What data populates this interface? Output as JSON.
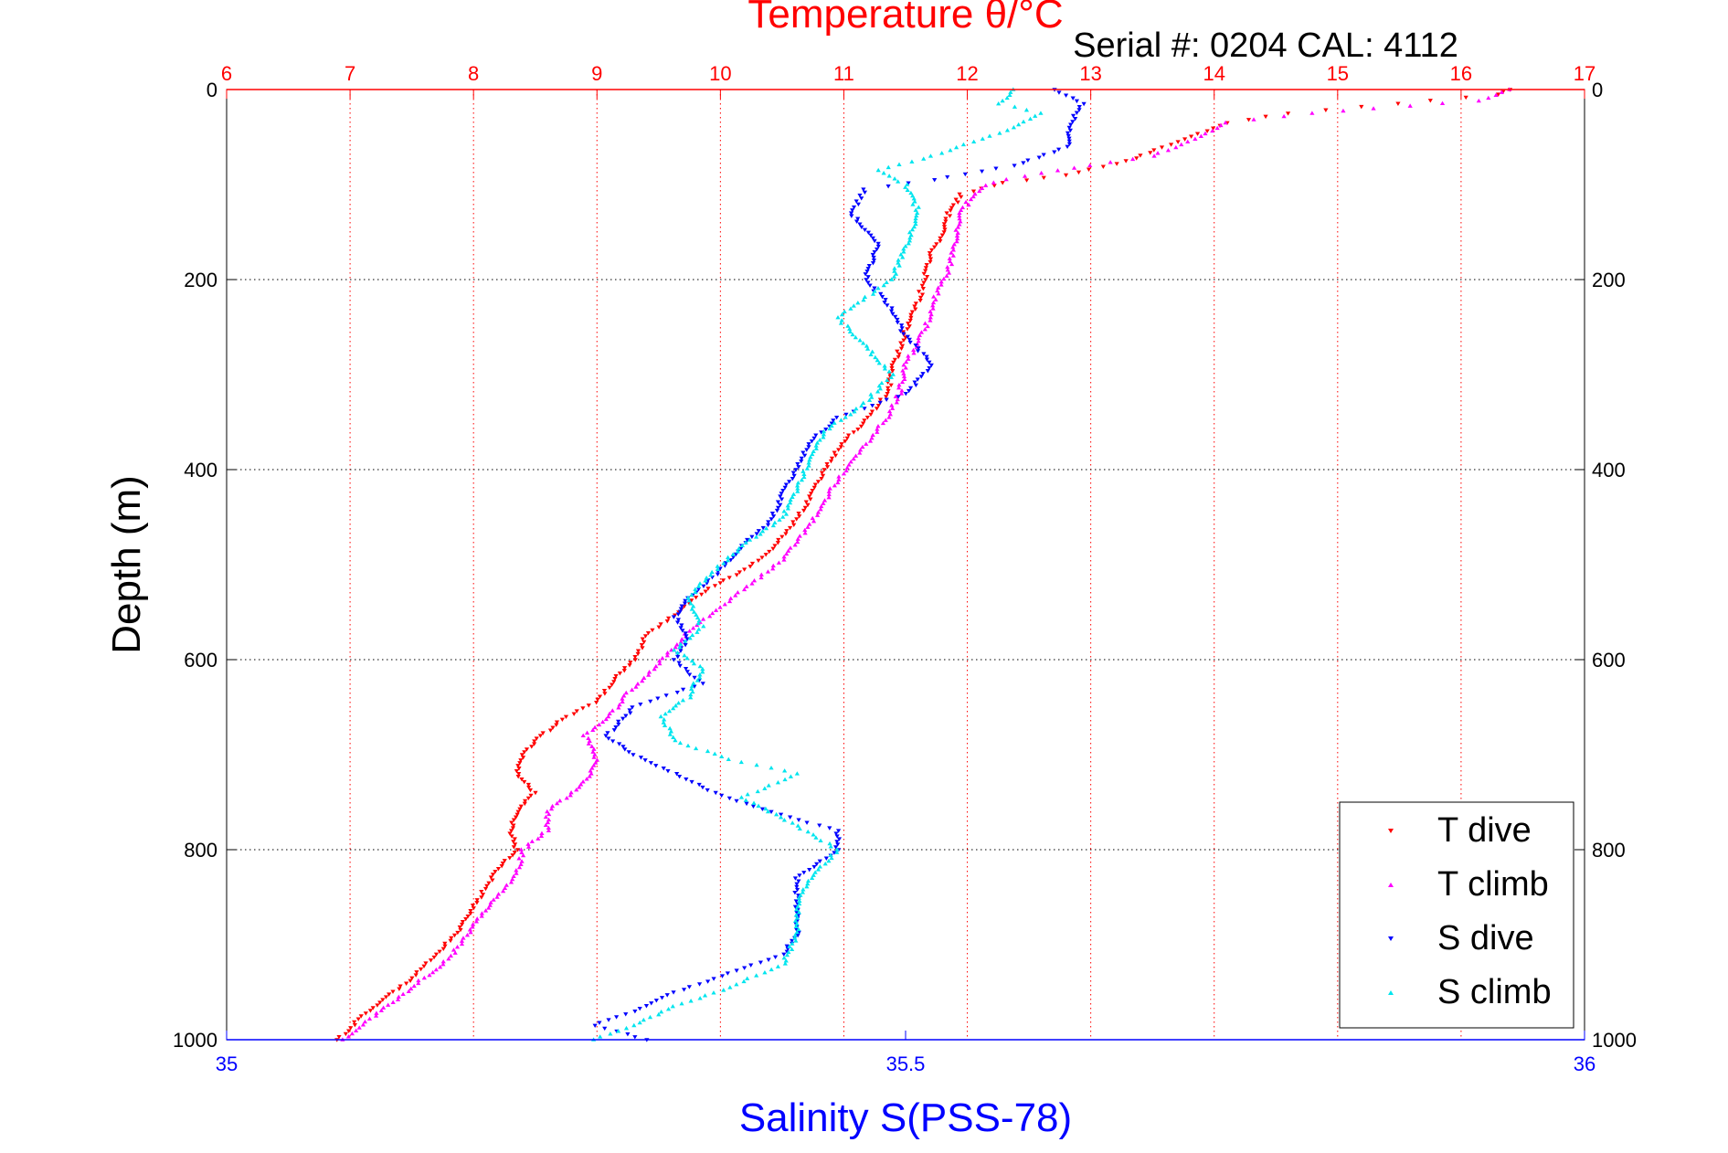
{
  "chart_data": {
    "type": "scatter",
    "title": "Temperature θ/°C",
    "subtitle": "Serial #: 0204  CAL: 4112",
    "ylabel": "Depth (m)",
    "xlabel": "Salinity S(PSS-78)",
    "x_top": {
      "label": "Temperature θ/°C",
      "range": [
        6,
        17
      ],
      "ticks": [
        "6",
        "7",
        "8",
        "9",
        "10",
        "11",
        "12",
        "13",
        "14",
        "15",
        "16",
        "17"
      ],
      "color": "#ff0000"
    },
    "x_bottom": {
      "label": "Salinity S(PSS-78)",
      "range": [
        35,
        36
      ],
      "ticks": [
        "35",
        "35.5",
        "36"
      ],
      "color": "#0000ff"
    },
    "y": {
      "range": [
        0,
        1000
      ],
      "reversed": true,
      "ticks": [
        "0",
        "200",
        "400",
        "600",
        "800",
        "1000"
      ]
    },
    "grid": true,
    "legend_position": "bottom-right",
    "series": [
      {
        "name": "T dive",
        "axis": "temperature",
        "color": "#ff0000",
        "marker": "triangle-down",
        "points": [
          [
            16.4,
            0
          ],
          [
            16.3,
            5
          ],
          [
            15.2,
            18
          ],
          [
            14.6,
            25
          ],
          [
            14.1,
            35
          ],
          [
            13.7,
            55
          ],
          [
            13.3,
            75
          ],
          [
            12.8,
            90
          ],
          [
            12.3,
            98
          ],
          [
            11.95,
            110
          ],
          [
            11.85,
            130
          ],
          [
            11.8,
            150
          ],
          [
            11.7,
            175
          ],
          [
            11.65,
            200
          ],
          [
            11.6,
            225
          ],
          [
            11.5,
            255
          ],
          [
            11.4,
            290
          ],
          [
            11.35,
            320
          ],
          [
            11.2,
            345
          ],
          [
            11.0,
            370
          ],
          [
            10.85,
            400
          ],
          [
            10.75,
            425
          ],
          [
            10.6,
            455
          ],
          [
            10.45,
            480
          ],
          [
            10.2,
            505
          ],
          [
            9.9,
            525
          ],
          [
            9.65,
            550
          ],
          [
            9.4,
            575
          ],
          [
            9.3,
            600
          ],
          [
            9.15,
            620
          ],
          [
            9.0,
            645
          ],
          [
            8.75,
            660
          ],
          [
            8.55,
            680
          ],
          [
            8.4,
            700
          ],
          [
            8.35,
            720
          ],
          [
            8.5,
            740
          ],
          [
            8.35,
            760
          ],
          [
            8.3,
            780
          ],
          [
            8.35,
            800
          ],
          [
            8.2,
            820
          ],
          [
            8.05,
            850
          ],
          [
            7.95,
            870
          ],
          [
            7.85,
            890
          ],
          [
            7.7,
            910
          ],
          [
            7.5,
            935
          ],
          [
            7.3,
            955
          ],
          [
            7.1,
            975
          ],
          [
            6.9,
            1000
          ]
        ]
      },
      {
        "name": "T climb",
        "axis": "temperature",
        "color": "#ff00ff",
        "marker": "triangle-up",
        "points": [
          [
            16.4,
            0
          ],
          [
            16.15,
            12
          ],
          [
            15.3,
            20
          ],
          [
            14.8,
            25
          ],
          [
            14.1,
            35
          ],
          [
            13.8,
            55
          ],
          [
            13.5,
            70
          ],
          [
            13.0,
            80
          ],
          [
            12.6,
            88
          ],
          [
            12.2,
            98
          ],
          [
            12.05,
            110
          ],
          [
            11.95,
            130
          ],
          [
            11.9,
            160
          ],
          [
            11.85,
            190
          ],
          [
            11.75,
            215
          ],
          [
            11.7,
            240
          ],
          [
            11.6,
            265
          ],
          [
            11.5,
            290
          ],
          [
            11.45,
            320
          ],
          [
            11.35,
            345
          ],
          [
            11.2,
            370
          ],
          [
            11.05,
            395
          ],
          [
            10.9,
            420
          ],
          [
            10.8,
            445
          ],
          [
            10.65,
            470
          ],
          [
            10.5,
            495
          ],
          [
            10.25,
            520
          ],
          [
            10.0,
            545
          ],
          [
            9.75,
            570
          ],
          [
            9.6,
            590
          ],
          [
            9.45,
            610
          ],
          [
            9.25,
            635
          ],
          [
            9.1,
            660
          ],
          [
            8.9,
            680
          ],
          [
            9.0,
            700
          ],
          [
            8.95,
            720
          ],
          [
            8.8,
            740
          ],
          [
            8.6,
            760
          ],
          [
            8.6,
            780
          ],
          [
            8.4,
            800
          ],
          [
            8.35,
            825
          ],
          [
            8.2,
            850
          ],
          [
            8.05,
            870
          ],
          [
            7.95,
            890
          ],
          [
            7.8,
            915
          ],
          [
            7.6,
            935
          ],
          [
            7.4,
            955
          ],
          [
            7.2,
            975
          ],
          [
            6.95,
            1000
          ]
        ]
      },
      {
        "name": "S dive",
        "axis": "salinity",
        "color": "#0000ff",
        "marker": "triangle-down",
        "points": [
          [
            35.61,
            0
          ],
          [
            35.63,
            15
          ],
          [
            35.62,
            40
          ],
          [
            35.62,
            60
          ],
          [
            35.58,
            80
          ],
          [
            35.52,
            95
          ],
          [
            35.47,
            105
          ],
          [
            35.46,
            130
          ],
          [
            35.48,
            165
          ],
          [
            35.47,
            200
          ],
          [
            35.49,
            230
          ],
          [
            35.5,
            260
          ],
          [
            35.52,
            290
          ],
          [
            35.5,
            320
          ],
          [
            35.45,
            345
          ],
          [
            35.43,
            370
          ],
          [
            35.42,
            400
          ],
          [
            35.41,
            425
          ],
          [
            35.4,
            455
          ],
          [
            35.38,
            480
          ],
          [
            35.36,
            510
          ],
          [
            35.34,
            535
          ],
          [
            35.33,
            555
          ],
          [
            35.34,
            575
          ],
          [
            35.33,
            600
          ],
          [
            35.35,
            625
          ],
          [
            35.3,
            650
          ],
          [
            35.28,
            680
          ],
          [
            35.3,
            700
          ],
          [
            35.33,
            720
          ],
          [
            35.36,
            740
          ],
          [
            35.4,
            760
          ],
          [
            35.45,
            780
          ],
          [
            35.45,
            800
          ],
          [
            35.42,
            830
          ],
          [
            35.42,
            860
          ],
          [
            35.42,
            890
          ],
          [
            35.41,
            910
          ],
          [
            35.37,
            930
          ],
          [
            35.33,
            950
          ],
          [
            35.3,
            970
          ],
          [
            35.27,
            985
          ],
          [
            35.31,
            1000
          ]
        ]
      },
      {
        "name": "S climb",
        "axis": "salinity",
        "color": "#00e5ee",
        "marker": "triangle-up",
        "points": [
          [
            35.58,
            0
          ],
          [
            35.57,
            15
          ],
          [
            35.6,
            25
          ],
          [
            35.58,
            40
          ],
          [
            35.55,
            55
          ],
          [
            35.52,
            70
          ],
          [
            35.48,
            85
          ],
          [
            35.5,
            100
          ],
          [
            35.51,
            130
          ],
          [
            35.5,
            165
          ],
          [
            35.49,
            200
          ],
          [
            35.45,
            240
          ],
          [
            35.47,
            270
          ],
          [
            35.49,
            300
          ],
          [
            35.47,
            330
          ],
          [
            35.44,
            360
          ],
          [
            35.43,
            390
          ],
          [
            35.42,
            420
          ],
          [
            35.41,
            450
          ],
          [
            35.38,
            480
          ],
          [
            35.36,
            505
          ],
          [
            35.34,
            535
          ],
          [
            35.35,
            565
          ],
          [
            35.33,
            590
          ],
          [
            35.35,
            610
          ],
          [
            35.34,
            640
          ],
          [
            35.32,
            660
          ],
          [
            35.33,
            685
          ],
          [
            35.37,
            705
          ],
          [
            35.42,
            720
          ],
          [
            35.38,
            745
          ],
          [
            35.42,
            775
          ],
          [
            35.45,
            800
          ],
          [
            35.43,
            830
          ],
          [
            35.42,
            860
          ],
          [
            35.42,
            890
          ],
          [
            35.41,
            920
          ],
          [
            35.37,
            945
          ],
          [
            35.33,
            965
          ],
          [
            35.3,
            985
          ],
          [
            35.27,
            1000
          ]
        ]
      }
    ]
  }
}
